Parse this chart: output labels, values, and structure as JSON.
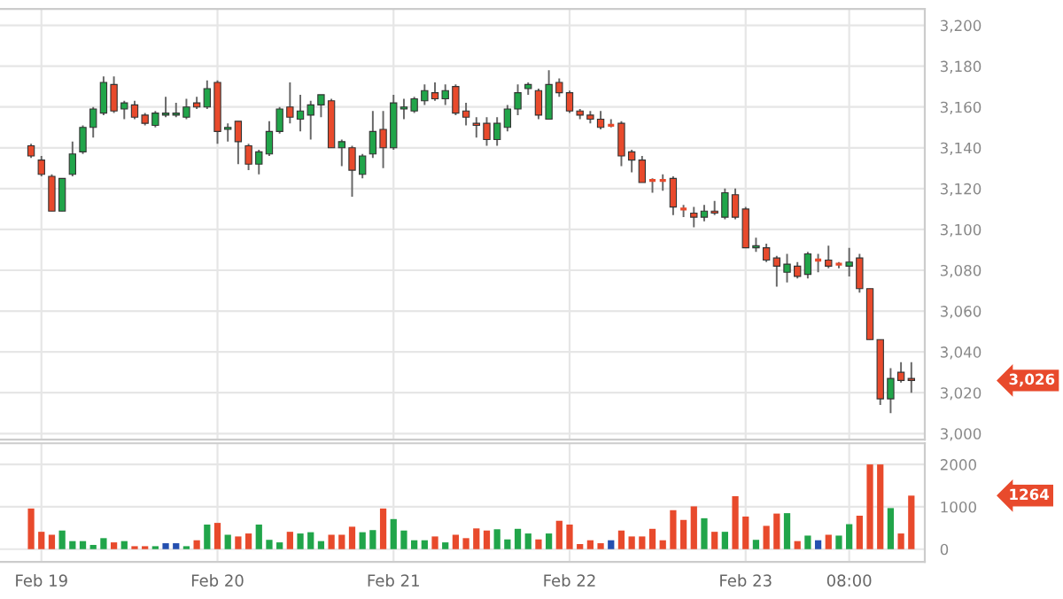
{
  "chart_data": [
    {
      "type": "candlestick",
      "categories": [
        null,
        null,
        null,
        null,
        null,
        null,
        null,
        null,
        null,
        null,
        null,
        null,
        null,
        null,
        null,
        null,
        null,
        null,
        null,
        null,
        null,
        null,
        null,
        null,
        null,
        null,
        null,
        null,
        null,
        null,
        null,
        null,
        null,
        null,
        null,
        null,
        null,
        null,
        null,
        null,
        null,
        null,
        null,
        null,
        null,
        null,
        null,
        null,
        null,
        null,
        null,
        null,
        null,
        null,
        null,
        null,
        null,
        null,
        null,
        null,
        null,
        null,
        null,
        null,
        null,
        null,
        null,
        null,
        null,
        null,
        null,
        null,
        null,
        null,
        null,
        null,
        null,
        null,
        null,
        null,
        null,
        null,
        null,
        null,
        null,
        null
      ],
      "ohlc": [
        [
          3141,
          3142,
          3135,
          3136
        ],
        [
          3134,
          3136,
          3126,
          3127
        ],
        [
          3126,
          3127,
          3109,
          3109
        ],
        [
          3109,
          3125,
          3109,
          3125
        ],
        [
          3127,
          3143,
          3126,
          3137
        ],
        [
          3138,
          3151,
          3137,
          3150
        ],
        [
          3150,
          3160,
          3145,
          3159
        ],
        [
          3157,
          3175,
          3156,
          3172
        ],
        [
          3171,
          3175,
          3157,
          3158
        ],
        [
          3159,
          3163,
          3154,
          3162
        ],
        [
          3161,
          3163,
          3154,
          3155
        ],
        [
          3156,
          3157,
          3151,
          3152
        ],
        [
          3151,
          3158,
          3150,
          3157
        ],
        [
          3156,
          3165,
          3155,
          3157
        ],
        [
          3156,
          3162,
          3155,
          3157
        ],
        [
          3155,
          3164,
          3154,
          3160
        ],
        [
          3162,
          3165,
          3159,
          3160
        ],
        [
          3160,
          3173,
          3159,
          3169
        ],
        [
          3172,
          3173,
          3142,
          3148
        ],
        [
          3149,
          3152,
          3143,
          3150
        ],
        [
          3153,
          3153,
          3132,
          3143
        ],
        [
          3141,
          3142,
          3129,
          3132
        ],
        [
          3132,
          3139,
          3127,
          3138
        ],
        [
          3137,
          3153,
          3136,
          3148
        ],
        [
          3148,
          3160,
          3147,
          3159
        ],
        [
          3160,
          3172,
          3152,
          3155
        ],
        [
          3154,
          3166,
          3148,
          3158
        ],
        [
          3156,
          3163,
          3144,
          3161
        ],
        [
          3161,
          3166,
          3155,
          3166
        ],
        [
          3163,
          3164,
          3140,
          3140
        ],
        [
          3140,
          3144,
          3131,
          3143
        ],
        [
          3140,
          3141,
          3116,
          3129
        ],
        [
          3127,
          3137,
          3125,
          3136
        ],
        [
          3137,
          3158,
          3135,
          3148
        ],
        [
          3149,
          3158,
          3130,
          3140
        ],
        [
          3140,
          3166,
          3139,
          3162
        ],
        [
          3159,
          3164,
          3154,
          3160
        ],
        [
          3158,
          3165,
          3157,
          3164
        ],
        [
          3163,
          3171,
          3161,
          3168
        ],
        [
          3167,
          3172,
          3163,
          3164
        ],
        [
          3164,
          3171,
          3161,
          3168
        ],
        [
          3170,
          3171,
          3156,
          3157
        ],
        [
          3158,
          3162,
          3151,
          3155
        ],
        [
          3152,
          3155,
          3145,
          3151
        ],
        [
          3152,
          3155,
          3141,
          3144
        ],
        [
          3144,
          3155,
          3141,
          3152
        ],
        [
          3150,
          3161,
          3148,
          3159
        ],
        [
          3159,
          3171,
          3156,
          3167
        ],
        [
          3169,
          3172,
          3166,
          3171
        ],
        [
          3168,
          3169,
          3154,
          3156
        ],
        [
          3154,
          3178,
          3154,
          3171
        ],
        [
          3172,
          3174,
          3165,
          3167
        ],
        [
          3167,
          3168,
          3157,
          3158
        ],
        [
          3158,
          3159,
          3154,
          3156
        ],
        [
          3156,
          3158,
          3152,
          3154
        ],
        [
          3154,
          3158,
          3149,
          3150
        ],
        [
          3151,
          3154,
          3150,
          3151
        ],
        [
          3152,
          3153,
          3131,
          3136
        ],
        [
          3138,
          3139,
          3128,
          3134
        ],
        [
          3134,
          3136,
          3123,
          3123
        ],
        [
          3124,
          3125,
          3118,
          3124
        ],
        [
          3124,
          3127,
          3119,
          3124
        ],
        [
          3125,
          3126,
          3107,
          3111
        ],
        [
          3110,
          3112,
          3106,
          3110
        ],
        [
          3108,
          3111,
          3101,
          3106
        ],
        [
          3106,
          3112,
          3104,
          3109
        ],
        [
          3109,
          3114,
          3107,
          3108
        ],
        [
          3106,
          3120,
          3105,
          3118
        ],
        [
          3117,
          3120,
          3105,
          3106
        ],
        [
          3110,
          3111,
          3091,
          3091
        ],
        [
          3091,
          3096,
          3089,
          3092
        ],
        [
          3091,
          3093,
          3084,
          3085
        ],
        [
          3086,
          3087,
          3072,
          3082
        ],
        [
          3079,
          3088,
          3074,
          3083
        ],
        [
          3082,
          3084,
          3076,
          3077
        ],
        [
          3078,
          3089,
          3076,
          3088
        ],
        [
          3085,
          3088,
          3079,
          3085
        ],
        [
          3085,
          3092,
          3081,
          3082
        ],
        [
          3083,
          3084,
          3081,
          3083
        ],
        [
          3082,
          3091,
          3077,
          3084
        ],
        [
          3086,
          3088,
          3069,
          3071
        ],
        [
          3071,
          3071,
          3046,
          3046
        ],
        [
          3046,
          3046,
          3014,
          3017
        ],
        [
          3017,
          3032,
          3010,
          3027
        ],
        [
          3030,
          3035,
          3025,
          3026
        ],
        [
          3027,
          3035,
          3020,
          3026
        ]
      ],
      "colors": [
        "#e84a2c",
        "#e84a2c",
        "#e84a2c",
        "#21a54a",
        "#21a54a",
        "#21a54a",
        "#21a54a",
        "#21a54a",
        "#e84a2c",
        "#21a54a",
        "#e84a2c",
        "#e84a2c",
        "#21a54a",
        "#21a54a",
        "#21a54a",
        "#21a54a",
        "#e84a2c",
        "#21a54a",
        "#e84a2c",
        "#21a54a",
        "#e84a2c",
        "#e84a2c",
        "#21a54a",
        "#21a54a",
        "#21a54a",
        "#e84a2c",
        "#21a54a",
        "#21a54a",
        "#21a54a",
        "#e84a2c",
        "#21a54a",
        "#e84a2c",
        "#21a54a",
        "#21a54a",
        "#e84a2c",
        "#21a54a",
        "#21a54a",
        "#21a54a",
        "#21a54a",
        "#e84a2c",
        "#21a54a",
        "#e84a2c",
        "#e84a2c",
        "#e84a2c",
        "#e84a2c",
        "#21a54a",
        "#21a54a",
        "#21a54a",
        "#21a54a",
        "#e84a2c",
        "#21a54a",
        "#e84a2c",
        "#e84a2c",
        "#e84a2c",
        "#e84a2c",
        "#e84a2c",
        "#e84a2c",
        "#e84a2c",
        "#e84a2c",
        "#e84a2c",
        "#e84a2c",
        "#e84a2c",
        "#e84a2c",
        "#e84a2c",
        "#e84a2c",
        "#21a54a",
        "#e84a2c",
        "#21a54a",
        "#e84a2c",
        "#e84a2c",
        "#21a54a",
        "#e84a2c",
        "#e84a2c",
        "#21a54a",
        "#e84a2c",
        "#21a54a",
        "#e84a2c",
        "#e84a2c",
        "#e84a2c",
        "#21a54a",
        "#e84a2c",
        "#e84a2c",
        "#e84a2c",
        "#21a54a",
        "#e84a2c",
        "#e84a2c"
      ],
      "ylim": [
        2997,
        3208
      ],
      "yticks": [
        {
          "value": 3000,
          "label": "3,000"
        },
        {
          "value": 3020,
          "label": "3,020"
        },
        {
          "value": 3040,
          "label": "3,040"
        },
        {
          "value": 3060,
          "label": "3,060"
        },
        {
          "value": 3080,
          "label": "3,080"
        },
        {
          "value": 3100,
          "label": "3,100"
        },
        {
          "value": 3120,
          "label": "3,120"
        },
        {
          "value": 3140,
          "label": "3,140"
        },
        {
          "value": 3160,
          "label": "3,160"
        },
        {
          "value": 3180,
          "label": "3,180"
        },
        {
          "value": 3200,
          "label": "3,200"
        }
      ],
      "annotations": [
        "3,026"
      ],
      "grid": true,
      "tick_labels": "y"
    },
    {
      "type": "bar",
      "categories": [
        null,
        "Feb 19",
        null,
        null,
        null,
        null,
        null,
        null,
        null,
        null,
        null,
        null,
        null,
        null,
        null,
        null,
        null,
        null,
        "Feb 20",
        null,
        null,
        null,
        null,
        null,
        null,
        null,
        null,
        null,
        null,
        null,
        null,
        null,
        null,
        null,
        null,
        "Feb 21",
        null,
        null,
        null,
        null,
        null,
        null,
        null,
        null,
        null,
        null,
        null,
        null,
        null,
        null,
        null,
        null,
        "Feb 22",
        null,
        null,
        null,
        null,
        null,
        null,
        null,
        null,
        null,
        null,
        null,
        null,
        null,
        null,
        null,
        null,
        "Feb 23",
        null,
        null,
        null,
        null,
        null,
        null,
        null,
        null,
        null,
        "08:00",
        null,
        null,
        null,
        null,
        null,
        null
      ],
      "values": [
        960,
        410,
        340,
        440,
        190,
        190,
        100,
        260,
        160,
        190,
        70,
        70,
        70,
        140,
        140,
        70,
        210,
        580,
        620,
        340,
        300,
        370,
        580,
        220,
        160,
        410,
        370,
        400,
        190,
        340,
        340,
        530,
        400,
        450,
        960,
        710,
        440,
        210,
        210,
        300,
        160,
        340,
        260,
        490,
        440,
        470,
        230,
        480,
        370,
        230,
        370,
        670,
        580,
        120,
        210,
        140,
        210,
        440,
        300,
        300,
        480,
        210,
        920,
        690,
        1010,
        730,
        410,
        410,
        1250,
        770,
        220,
        550,
        840,
        850,
        190,
        320,
        210,
        340,
        320,
        590,
        790,
        2000,
        2000,
        970,
        370,
        1264
      ],
      "colors": [
        "#e84a2c",
        "#e84a2c",
        "#e84a2c",
        "#21a54a",
        "#21a54a",
        "#21a54a",
        "#21a54a",
        "#21a54a",
        "#e84a2c",
        "#21a54a",
        "#e84a2c",
        "#e84a2c",
        "#21a54a",
        "#2550b0",
        "#2550b0",
        "#21a54a",
        "#e84a2c",
        "#21a54a",
        "#e84a2c",
        "#21a54a",
        "#e84a2c",
        "#e84a2c",
        "#21a54a",
        "#21a54a",
        "#21a54a",
        "#e84a2c",
        "#21a54a",
        "#21a54a",
        "#21a54a",
        "#e84a2c",
        "#e84a2c",
        "#e84a2c",
        "#21a54a",
        "#21a54a",
        "#e84a2c",
        "#21a54a",
        "#21a54a",
        "#21a54a",
        "#21a54a",
        "#e84a2c",
        "#21a54a",
        "#e84a2c",
        "#e84a2c",
        "#e84a2c",
        "#e84a2c",
        "#21a54a",
        "#21a54a",
        "#21a54a",
        "#21a54a",
        "#e84a2c",
        "#21a54a",
        "#e84a2c",
        "#e84a2c",
        "#e84a2c",
        "#e84a2c",
        "#e84a2c",
        "#2550b0",
        "#e84a2c",
        "#e84a2c",
        "#e84a2c",
        "#e84a2c",
        "#e84a2c",
        "#e84a2c",
        "#e84a2c",
        "#e84a2c",
        "#21a54a",
        "#e84a2c",
        "#21a54a",
        "#e84a2c",
        "#e84a2c",
        "#21a54a",
        "#e84a2c",
        "#e84a2c",
        "#21a54a",
        "#e84a2c",
        "#21a54a",
        "#2550b0",
        "#e84a2c",
        "#21a54a",
        "#21a54a",
        "#e84a2c",
        "#e84a2c",
        "#e84a2c",
        "#21a54a",
        "#e84a2c",
        "#e84a2c"
      ],
      "ylim": [
        -300,
        2500
      ],
      "yticks": [
        0,
        1000,
        2000
      ],
      "annotations": [
        "1264"
      ],
      "grid": true
    }
  ]
}
